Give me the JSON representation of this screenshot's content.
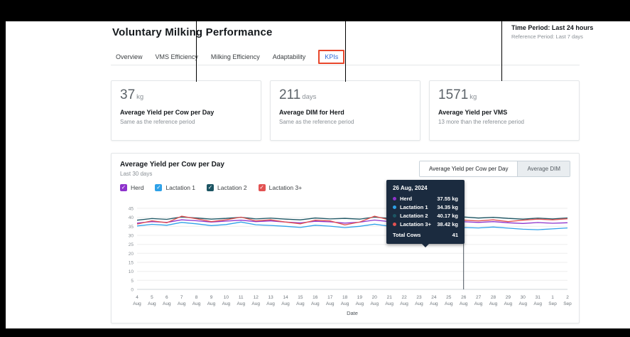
{
  "header": {
    "title": "Voluntary Milking Performance",
    "time_period": "Time Period: Last 24 hours",
    "reference_period": "Reference Period: Last 7 days"
  },
  "tabs": [
    {
      "label": "Overview"
    },
    {
      "label": "VMS Efficiency"
    },
    {
      "label": "Milking Efficiency"
    },
    {
      "label": "Adaptability"
    },
    {
      "label": "KPIs"
    }
  ],
  "kpi_cards": [
    {
      "value": "37",
      "unit": "kg",
      "label": "Average Yield per Cow per Day",
      "sublabel": "Same as the reference period"
    },
    {
      "value": "211",
      "unit": "days",
      "label": "Average DIM for Herd",
      "sublabel": "Same as the reference period"
    },
    {
      "value": "1571",
      "unit": "kg",
      "label": "Average Yield per VMS",
      "sublabel": "13 more than the reference period"
    }
  ],
  "chart_card": {
    "title": "Average Yield per Cow per Day",
    "subtitle": "Last 30 days",
    "toggle": [
      {
        "label": "Average Yield per Cow per Day",
        "active": true
      },
      {
        "label": "Average DIM",
        "active": false
      }
    ]
  },
  "tooltip": {
    "date": "26 Aug, 2024",
    "rows": [
      {
        "name": "Herd",
        "value": "37.55 kg"
      },
      {
        "name": "Lactation 1",
        "value": "34.35 kg"
      },
      {
        "name": "Lactation 2",
        "value": "40.17 kg"
      },
      {
        "name": "Lactation 3+",
        "value": "38.42 kg"
      }
    ],
    "total": {
      "label": "Total Cows",
      "value": "41"
    }
  },
  "chart_data": {
    "type": "line",
    "title": "Average Yield per Cow per Day",
    "xlabel": "Date",
    "ylabel": "",
    "ylim": [
      0,
      45
    ],
    "yticks": [
      0,
      5,
      10,
      15,
      20,
      25,
      30,
      35,
      40,
      45
    ],
    "grid": true,
    "legend_position": "top-left",
    "hover_index": 22,
    "hover_line_color": "#49535c",
    "x": [
      "4 Aug",
      "5 Aug",
      "6 Aug",
      "7 Aug",
      "8 Aug",
      "9 Aug",
      "10 Aug",
      "11 Aug",
      "12 Aug",
      "13 Aug",
      "14 Aug",
      "15 Aug",
      "16 Aug",
      "17 Aug",
      "18 Aug",
      "19 Aug",
      "20 Aug",
      "21 Aug",
      "22 Aug",
      "23 Aug",
      "24 Aug",
      "25 Aug",
      "26 Aug",
      "27 Aug",
      "28 Aug",
      "29 Aug",
      "30 Aug",
      "31 Aug",
      "1 Sep",
      "2 Sep"
    ],
    "series": [
      {
        "name": "Herd",
        "color": "#8e33cc",
        "values": [
          36.8,
          37.6,
          37.2,
          38.6,
          38.1,
          37.4,
          37.9,
          38.4,
          37.6,
          38.0,
          37.4,
          36.9,
          37.8,
          37.5,
          36.8,
          37.3,
          38.5,
          37.6,
          37.1,
          37.4,
          37.9,
          37.3,
          37.55,
          37.2,
          37.6,
          37.0,
          36.6,
          37.1,
          36.7,
          37.0
        ]
      },
      {
        "name": "Lactation 1",
        "color": "#2ea1e8",
        "values": [
          35.2,
          36.1,
          35.6,
          37.2,
          36.4,
          35.4,
          36.0,
          37.4,
          35.9,
          35.5,
          35.0,
          34.4,
          35.6,
          35.1,
          34.3,
          35.0,
          36.2,
          35.1,
          34.6,
          35.0,
          35.4,
          34.6,
          34.35,
          34.1,
          34.6,
          34.0,
          33.4,
          33.1,
          33.6,
          34.1
        ]
      },
      {
        "name": "Lactation 2",
        "color": "#1c5563",
        "values": [
          38.4,
          39.3,
          38.9,
          40.2,
          39.6,
          39.0,
          39.4,
          40.0,
          39.1,
          39.5,
          39.0,
          38.6,
          39.6,
          39.1,
          39.4,
          39.0,
          40.1,
          39.4,
          39.0,
          39.5,
          40.0,
          39.6,
          40.17,
          39.6,
          40.0,
          39.4,
          39.0,
          39.5,
          39.1,
          39.6
        ]
      },
      {
        "name": "Lactation 3+",
        "color": "#e25252",
        "values": [
          36.2,
          38.1,
          37.0,
          40.6,
          39.2,
          37.6,
          38.6,
          40.1,
          38.0,
          38.6,
          37.4,
          36.4,
          38.4,
          38.0,
          35.8,
          37.4,
          40.6,
          38.6,
          37.0,
          38.0,
          39.1,
          38.1,
          38.42,
          38.0,
          38.6,
          37.6,
          38.4,
          39.0,
          38.6,
          39.2
        ]
      }
    ]
  }
}
